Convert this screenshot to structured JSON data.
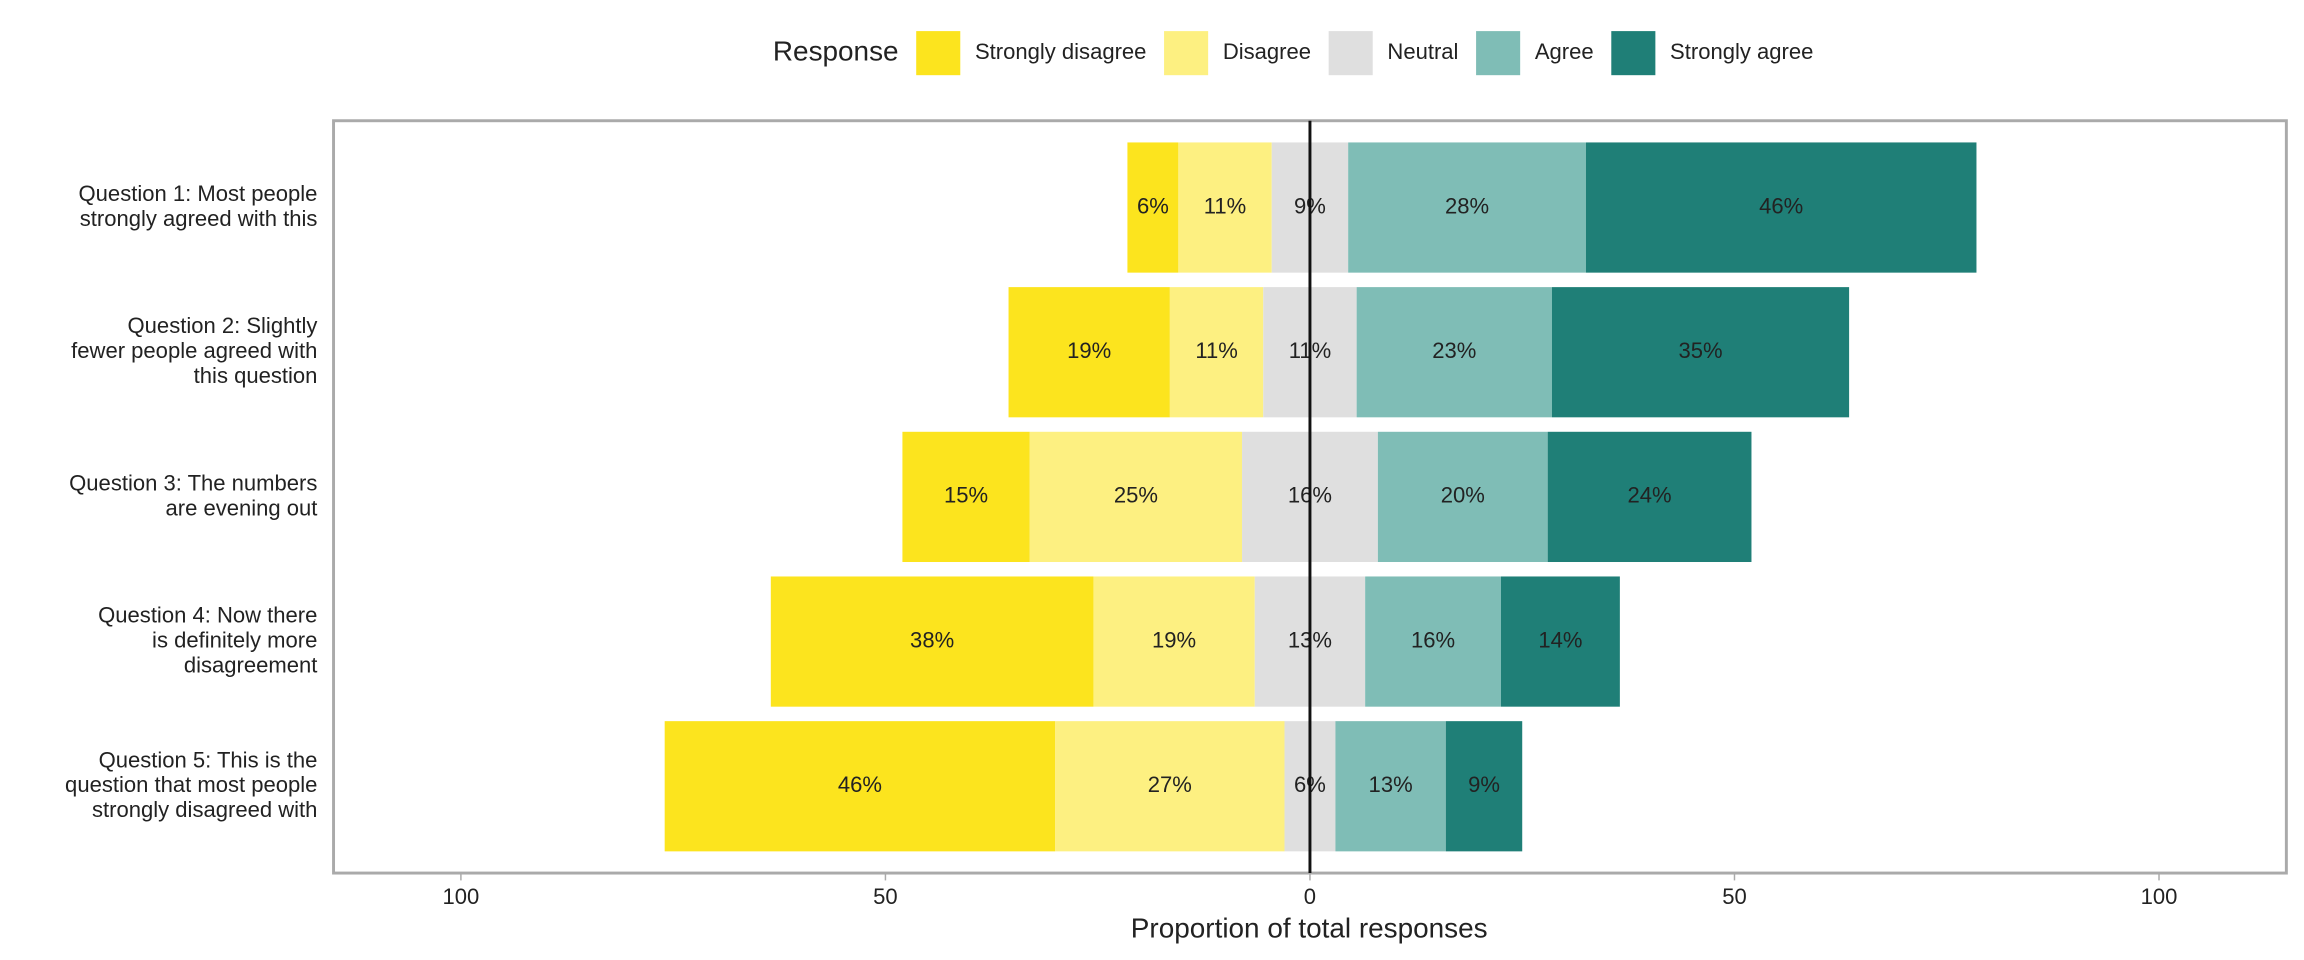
{
  "chart_data": {
    "type": "diverging-bar",
    "legend_title": "Response",
    "x_label": "Proportion of total responses",
    "categories": [
      "Question 1: Most people\nstrongly agreed with this",
      "Question 2: Slightly\nfewer people agreed with\nthis question",
      "Question 3: The numbers\nare evening out",
      "Question 4: Now there\nis definitely more\ndisagreement",
      "Question 5: This is the\nquestion that most people\nstrongly disagreed with"
    ],
    "neutral_series": 2,
    "series": [
      {
        "name": "Strongly disagree",
        "color": "#fce41e",
        "values": [
          6,
          19,
          15,
          38,
          46
        ],
        "value_labels": [
          "6%",
          "19%",
          "15%",
          "38%",
          "46%"
        ]
      },
      {
        "name": "Disagree",
        "color": "#fdf081",
        "values": [
          11,
          11,
          25,
          19,
          27
        ],
        "value_labels": [
          "11%",
          "11%",
          "25%",
          "19%",
          "27%"
        ]
      },
      {
        "name": "Neutral",
        "color": "#dfdfdf",
        "values": [
          9,
          11,
          16,
          13,
          6
        ],
        "value_labels": [
          "9%",
          "11%",
          "16%",
          "13%",
          "6%"
        ]
      },
      {
        "name": "Agree",
        "color": "#7fbdb6",
        "values": [
          28,
          23,
          20,
          16,
          13
        ],
        "value_labels": [
          "28%",
          "23%",
          "20%",
          "16%",
          "13%"
        ]
      },
      {
        "name": "Strongly agree",
        "color": "#1f7f77",
        "values": [
          46,
          35,
          24,
          14,
          9
        ],
        "value_labels": [
          "46%",
          "35%",
          "24%",
          "14%",
          "9%"
        ]
      }
    ],
    "xlim": [
      -115,
      115
    ],
    "xticks": [
      {
        "value": -100,
        "label": "100"
      },
      {
        "value": -50,
        "label": "50"
      },
      0,
      50,
      100
    ]
  }
}
